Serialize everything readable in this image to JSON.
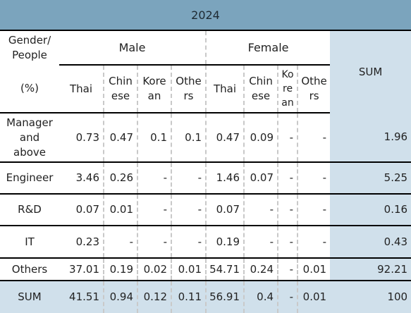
{
  "year": "2024",
  "header": {
    "corner_top": [
      "Gender/",
      "People"
    ],
    "corner_unit": "(%)",
    "groups": [
      "Male",
      "Female"
    ],
    "sum_label": "SUM",
    "male_cols": [
      [
        "Thai"
      ],
      [
        "Chin",
        "ese"
      ],
      [
        "Kore",
        "an"
      ],
      [
        "Othe",
        "rs"
      ]
    ],
    "female_cols": [
      [
        "Thai"
      ],
      [
        "Chin",
        "ese"
      ],
      [
        "Ko",
        "re",
        "an"
      ],
      [
        "Othe",
        "rs"
      ]
    ]
  },
  "rows": [
    {
      "label": [
        "Manager",
        "and",
        "above"
      ],
      "values": [
        "0.73",
        "0.47",
        "0.1",
        "0.1",
        "0.47",
        "0.09",
        "-",
        "-"
      ],
      "sum": "1.96"
    },
    {
      "label": [
        "Engineer"
      ],
      "values": [
        "3.46",
        "0.26",
        "-",
        "-",
        "1.46",
        "0.07",
        "-",
        "-"
      ],
      "sum": "5.25"
    },
    {
      "label": [
        "R&D"
      ],
      "values": [
        "0.07",
        "0.01",
        "-",
        "-",
        "0.07",
        "-",
        "-",
        "-"
      ],
      "sum": "0.16"
    },
    {
      "label": [
        "IT"
      ],
      "values": [
        "0.23",
        "-",
        "-",
        "-",
        "0.19",
        "-",
        "-",
        "-"
      ],
      "sum": "0.43"
    },
    {
      "label": [
        "Others"
      ],
      "values": [
        "37.01",
        "0.19",
        "0.02",
        "0.01",
        "54.71",
        "0.24",
        "-",
        "0.01"
      ],
      "sum": "92.21"
    }
  ],
  "total": {
    "label": "SUM",
    "values": [
      "41.51",
      "0.94",
      "0.12",
      "0.11",
      "56.91",
      "0.4",
      "-",
      "0.01"
    ],
    "sum": "100"
  }
}
